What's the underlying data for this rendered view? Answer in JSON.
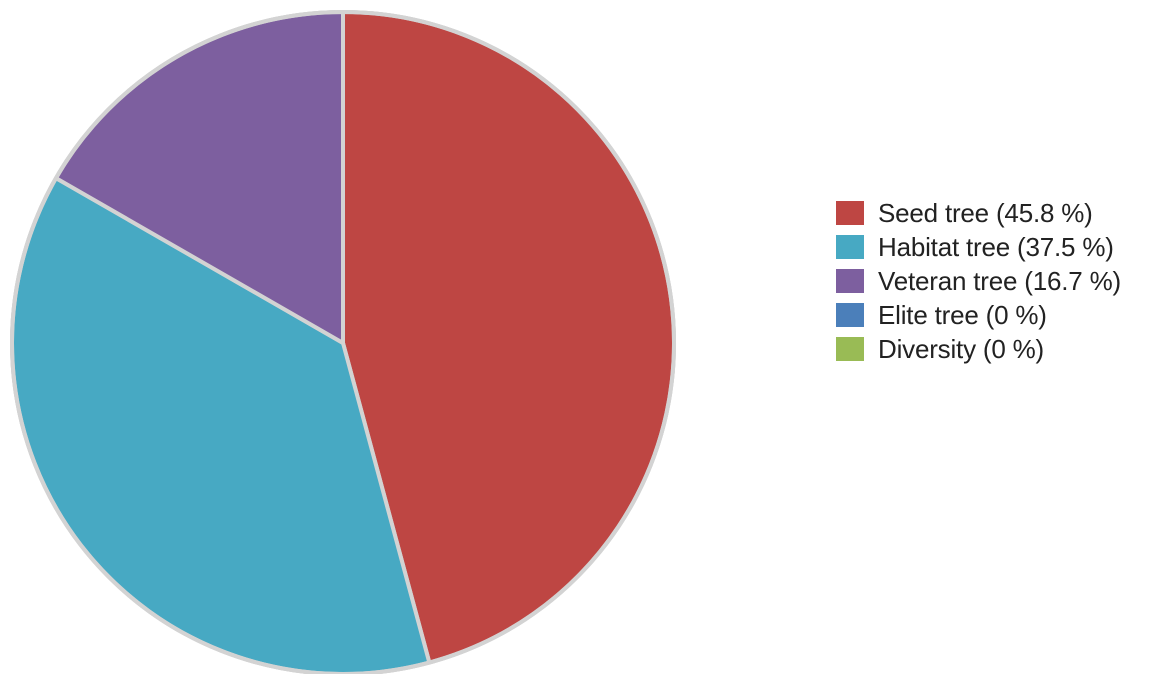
{
  "chart_data": {
    "type": "pie",
    "title": "",
    "legend_position": "right",
    "start_angle_deg": 0,
    "direction": "clockwise",
    "slice_border_color": "#d3d3d3",
    "slices": [
      {
        "name": "Seed tree",
        "value": 45.8,
        "label": "Seed tree (45.8 %)",
        "color": "#be4643"
      },
      {
        "name": "Habitat tree",
        "value": 37.5,
        "label": "Habitat tree (37.5 %)",
        "color": "#47a9c3"
      },
      {
        "name": "Veteran tree",
        "value": 16.7,
        "label": "Veteran tree (16.7 %)",
        "color": "#7d5f9f"
      },
      {
        "name": "Elite tree",
        "value": 0,
        "label": "Elite tree (0 %)",
        "color": "#4b7fba"
      },
      {
        "name": "Diversity",
        "value": 0,
        "label": "Diversity (0 %)",
        "color": "#99bb55"
      }
    ]
  }
}
